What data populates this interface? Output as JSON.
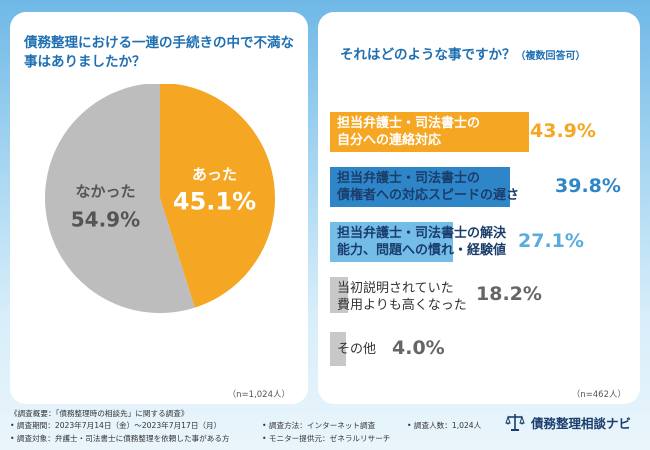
{
  "chart_data": [
    {
      "type": "pie",
      "title": "債務整理における一連の手続きの中で不満な事はありましたか？",
      "slices": [
        {
          "label": "あった",
          "value": 45.1,
          "display": "45.1%",
          "color": "#f5a623"
        },
        {
          "label": "なかった",
          "value": 54.9,
          "display": "54.9%",
          "color": "#bdbdbd"
        }
      ],
      "note": "（n=1,024人）"
    },
    {
      "type": "bar",
      "orientation": "horizontal",
      "title": "それはどのような事ですか？",
      "subtitle": "（複数回答可）",
      "categories": [
        "担当弁護士・司法書士の自分への連絡対応",
        "担当弁護士・司法書士の債権者への対応スピードの遅さ",
        "担当弁護士・司法書士の解決能力、問題への慣れ・経験値",
        "当初説明されていた費用よりも高くなった",
        "その他"
      ],
      "category_lines": [
        [
          "担当弁護士・司法書士の",
          "自分への連絡対応"
        ],
        [
          "担当弁護士・司法書士の",
          "債権者への対応スピードの遅さ"
        ],
        [
          "担当弁護士・司法書士の解決",
          "能力、問題への慣れ・経験値"
        ],
        [
          "当初説明されていた",
          "費用よりも高くなった"
        ],
        [
          "その他"
        ]
      ],
      "values": [
        43.9,
        39.8,
        27.1,
        18.2,
        4.0
      ],
      "value_labels": [
        "43.9%",
        "39.8%",
        "27.1%",
        "18.2%",
        "4.0%"
      ],
      "colors": [
        "#f5a623",
        "#2e86c8",
        "#74bde8",
        "#c8c8c8",
        "#c8c8c8"
      ],
      "value_colors": [
        "#f5a623",
        "#2e86c8",
        "#58ace0",
        "#666666",
        "#666666"
      ],
      "text_colors": [
        "#ffffff",
        "#1a3d6b",
        "#1a3d6b",
        "#333333",
        "#333333"
      ],
      "note": "（n=462人）"
    }
  ],
  "footer": {
    "line1": "《調査概要：「債務整理時の相談先」に関する調査》",
    "period": "• 調査期間：2023年7月14日（金）〜2023年7月17日（月）",
    "method": "• 調査方法：インターネット調査",
    "count": "• 調査人数：1,024人",
    "target": "• 調査対象：弁護士・司法書士に債務整理を依頼した事がある方",
    "provider": "• モニター提供元：ゼネラルリサーチ"
  },
  "brand": {
    "name": "債務整理相談ナビ",
    "icon": "scales-icon"
  }
}
